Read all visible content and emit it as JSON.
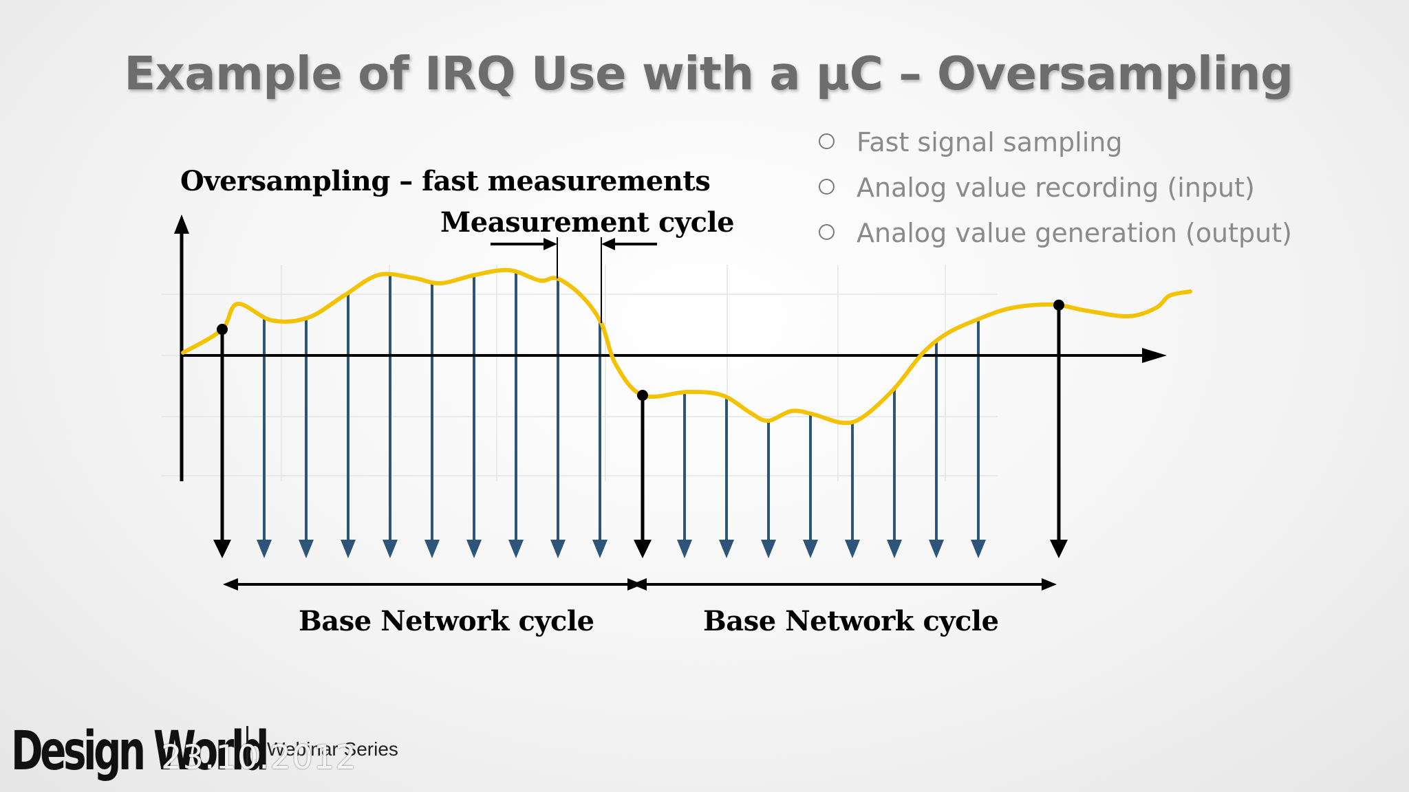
{
  "slide": {
    "title": "Example of IRQ Use with a μC – Oversampling",
    "bullets": [
      "Fast signal sampling",
      "Analog value recording (input)",
      "Analog value generation (output)"
    ]
  },
  "diagram": {
    "label_oversampling": "Oversampling – fast measurements",
    "label_measurement_cycle": "Measurement cycle",
    "label_base_cycle_1": "Base Network cycle",
    "label_base_cycle_2": "Base Network cycle"
  },
  "colors": {
    "signal": "#f3c200",
    "sample_arrow": "#2d5479",
    "axis": "#000000"
  },
  "footer": {
    "logo": "Design World",
    "series": "Webinar Series",
    "date": "23.10.2012"
  }
}
